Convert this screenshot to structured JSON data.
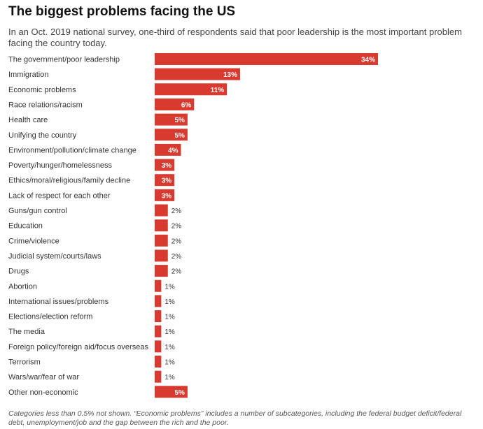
{
  "title": "The biggest problems facing the US",
  "subtitle": "In an Oct. 2019 national survey, one-third of respondents said that poor leadership is the most important problem facing the country today.",
  "note": "Categories less than 0.5% not shown. “Economic problems” includes a number of subcategories, including the federal budget deficit/federal debt, unemployment/job and the gap between the rich and the poor.",
  "colors": {
    "bar": "#d93a2f"
  },
  "chart_data": {
    "type": "bar",
    "orientation": "horizontal",
    "value_suffix": "%",
    "categories": [
      "The government/poor leadership",
      "Immigration",
      "Economic problems",
      "Race relations/racism",
      "Health care",
      "Unifying the country",
      "Environment/pollution/climate change",
      "Poverty/hunger/homelessness",
      "Ethics/moral/religious/family decline",
      "Lack of respect for each other",
      "Guns/gun control",
      "Education",
      "Crime/violence",
      "Judicial system/courts/laws",
      "Drugs",
      "Abortion",
      "International issues/problems",
      "Elections/election reform",
      "The media",
      "Foreign policy/foreign aid/focus overseas",
      "Terrorism",
      "Wars/war/fear of war",
      "Other non-economic"
    ],
    "values": [
      34,
      13,
      11,
      6,
      5,
      5,
      4,
      3,
      3,
      3,
      2,
      2,
      2,
      2,
      2,
      1,
      1,
      1,
      1,
      1,
      1,
      1,
      5
    ],
    "xlim": [
      0,
      34
    ],
    "grid": false,
    "legend": "none"
  }
}
